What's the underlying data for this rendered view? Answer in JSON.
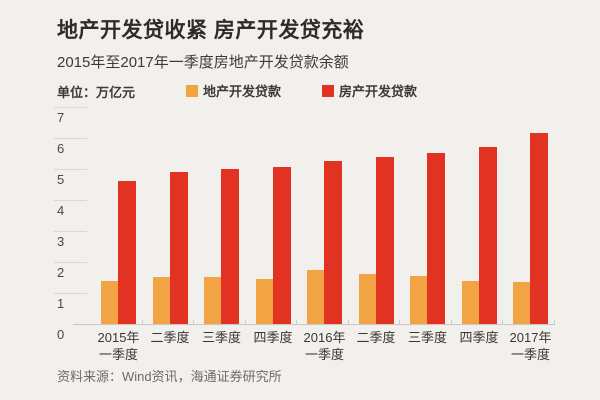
{
  "window": {
    "background": "#F2F0ED"
  },
  "header": {
    "title": "地产开发贷收紧 房产开发贷充裕",
    "subtitle": "2015年至2017年一季度房地产开发贷款余额",
    "unit_label": "单位：万亿元"
  },
  "legend": {
    "items": [
      {
        "label": "地产开发贷款",
        "color": "#F2A444"
      },
      {
        "label": "房产开发贷款",
        "color": "#E23222"
      }
    ]
  },
  "chart_data": {
    "type": "bar",
    "title": "地产开发贷收紧 房产开发贷充裕",
    "subtitle": "2015年至2017年一季度房地产开发贷款余额",
    "unit": "万亿元",
    "categories": [
      "2015年一季度",
      "二季度",
      "三季度",
      "四季度",
      "2016年一季度",
      "二季度",
      "三季度",
      "四季度",
      "2017年一季度"
    ],
    "category_lines": [
      [
        "2015年",
        "一季度"
      ],
      [
        "二季度"
      ],
      [
        "三季度"
      ],
      [
        "四季度"
      ],
      [
        "2016年",
        "一季度"
      ],
      [
        "二季度"
      ],
      [
        "三季度"
      ],
      [
        "四季度"
      ],
      [
        "2017年",
        "一季度"
      ]
    ],
    "series": [
      {
        "name": "地产开发贷款",
        "color": "#F2A444",
        "values": [
          1.4,
          1.5,
          1.5,
          1.45,
          1.75,
          1.6,
          1.55,
          1.4,
          1.35
        ]
      },
      {
        "name": "房产开发贷款",
        "color": "#E23222",
        "values": [
          4.6,
          4.9,
          5.0,
          5.05,
          5.25,
          5.4,
          5.5,
          5.7,
          6.15
        ]
      }
    ],
    "y_axis": {
      "min": 0,
      "max": 7,
      "tick_step": 1,
      "tick_labels": [
        "0",
        "1",
        "2",
        "3",
        "4",
        "5",
        "6",
        "7"
      ]
    },
    "grid": "short left tick segments only, no full gridlines",
    "legend_position": "top"
  },
  "footer": {
    "source": "资料来源：Wind资讯，海通证券研究所"
  }
}
